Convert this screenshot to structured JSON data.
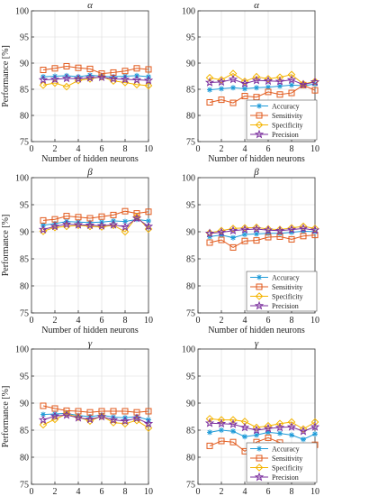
{
  "chart_data": [
    {
      "type": "line",
      "title": "α",
      "xlabel": "Number of hidden neurons",
      "ylabel": "Performance [%]",
      "xlim": [
        0,
        10
      ],
      "ylim": [
        75,
        100
      ],
      "xticks": [
        0,
        2,
        4,
        6,
        8,
        10
      ],
      "yticks": [
        75,
        80,
        85,
        90,
        95,
        100
      ],
      "grid": true,
      "legend": null,
      "x": [
        1,
        2,
        3,
        4,
        5,
        6,
        7,
        8,
        9,
        10
      ],
      "series": [
        {
          "name": "Accuracy",
          "values": [
            87.4,
            87.5,
            87.6,
            87.4,
            87.7,
            87.5,
            87.4,
            87.5,
            87.6,
            87.4
          ]
        },
        {
          "name": "Sensitivity",
          "values": [
            88.7,
            89.0,
            89.4,
            89.1,
            88.9,
            88.0,
            88.2,
            88.5,
            89.0,
            88.8
          ]
        },
        {
          "name": "Specificity",
          "values": [
            85.8,
            86.2,
            85.5,
            86.7,
            87.0,
            87.4,
            86.6,
            86.3,
            85.9,
            85.7
          ]
        },
        {
          "name": "Precision",
          "values": [
            86.8,
            86.9,
            87.1,
            87.0,
            87.2,
            87.3,
            87.0,
            86.9,
            86.8,
            86.7
          ]
        }
      ]
    },
    {
      "type": "line",
      "title": "α",
      "xlabel": "Number of hidden neurons",
      "ylabel": "",
      "xlim": [
        0,
        10
      ],
      "ylim": [
        75,
        100
      ],
      "xticks": [
        0,
        2,
        4,
        6,
        8,
        10
      ],
      "yticks": [
        75,
        80,
        85,
        90,
        95,
        100
      ],
      "grid": true,
      "legend": "bottom-right",
      "x": [
        1,
        2,
        3,
        4,
        5,
        6,
        7,
        8,
        9,
        10
      ],
      "series": [
        {
          "name": "Accuracy",
          "values": [
            84.9,
            85.1,
            85.3,
            85.1,
            85.3,
            85.4,
            85.6,
            85.8,
            85.7,
            86.0
          ]
        },
        {
          "name": "Sensitivity",
          "values": [
            82.5,
            83.0,
            82.4,
            83.7,
            83.5,
            84.5,
            84.0,
            84.3,
            85.8,
            84.8
          ]
        },
        {
          "name": "Specificity",
          "values": [
            87.2,
            86.8,
            88.0,
            86.5,
            87.4,
            87.0,
            87.3,
            87.8,
            86.0,
            86.5
          ]
        },
        {
          "name": "Precision",
          "values": [
            86.3,
            86.4,
            86.9,
            86.1,
            86.7,
            86.6,
            86.5,
            86.8,
            85.9,
            86.4
          ]
        }
      ]
    },
    {
      "type": "line",
      "title": "β",
      "xlabel": "Number of hidden neurons",
      "ylabel": "Performance [%]",
      "xlim": [
        0,
        10
      ],
      "ylim": [
        75,
        100
      ],
      "xticks": [
        0,
        2,
        4,
        6,
        8,
        10
      ],
      "yticks": [
        75,
        80,
        85,
        90,
        95,
        100
      ],
      "grid": true,
      "legend": null,
      "x": [
        1,
        2,
        3,
        4,
        5,
        6,
        7,
        8,
        9,
        10
      ],
      "series": [
        {
          "name": "Accuracy",
          "values": [
            91.2,
            91.5,
            91.9,
            91.8,
            91.7,
            91.8,
            92.0,
            91.9,
            92.3,
            92.0
          ]
        },
        {
          "name": "Sensitivity",
          "values": [
            92.1,
            92.3,
            92.9,
            92.7,
            92.5,
            92.8,
            93.1,
            93.8,
            93.4,
            93.7
          ]
        },
        {
          "name": "Specificity",
          "values": [
            90.1,
            90.8,
            91.0,
            91.2,
            91.0,
            90.9,
            91.2,
            90.0,
            92.8,
            90.5
          ]
        },
        {
          "name": "Precision",
          "values": [
            90.4,
            91.0,
            91.4,
            91.3,
            91.2,
            91.1,
            91.3,
            90.9,
            92.5,
            91.0
          ]
        }
      ]
    },
    {
      "type": "line",
      "title": "β",
      "xlabel": "Number of hidden neurons",
      "ylabel": "",
      "xlim": [
        0,
        10
      ],
      "ylim": [
        75,
        100
      ],
      "xticks": [
        0,
        2,
        4,
        6,
        8,
        10
      ],
      "yticks": [
        75,
        80,
        85,
        90,
        95,
        100
      ],
      "grid": true,
      "legend": "bottom-right",
      "x": [
        1,
        2,
        3,
        4,
        5,
        6,
        7,
        8,
        9,
        10
      ],
      "series": [
        {
          "name": "Accuracy",
          "values": [
            89.1,
            89.4,
            88.9,
            89.5,
            89.6,
            89.7,
            89.7,
            89.9,
            90.1,
            90.0
          ]
        },
        {
          "name": "Sensitivity",
          "values": [
            88.0,
            88.5,
            87.1,
            88.3,
            88.4,
            89.0,
            89.1,
            88.6,
            89.2,
            89.4
          ]
        },
        {
          "name": "Specificity",
          "values": [
            89.8,
            90.2,
            90.6,
            90.7,
            90.8,
            90.5,
            90.4,
            90.7,
            91.0,
            90.6
          ]
        },
        {
          "name": "Precision",
          "values": [
            89.7,
            89.9,
            90.2,
            90.4,
            90.5,
            90.3,
            90.2,
            90.4,
            90.6,
            90.3
          ]
        }
      ]
    },
    {
      "type": "line",
      "title": "γ",
      "xlabel": "Number of hidden neurons",
      "ylabel": "Performance [%]",
      "xlim": [
        0,
        10
      ],
      "ylim": [
        75,
        100
      ],
      "xticks": [
        0,
        2,
        4,
        6,
        8,
        10
      ],
      "yticks": [
        75,
        80,
        85,
        90,
        95,
        100
      ],
      "grid": true,
      "legend": null,
      "x": [
        1,
        2,
        3,
        4,
        5,
        6,
        7,
        8,
        9,
        10
      ],
      "series": [
        {
          "name": "Accuracy",
          "values": [
            87.9,
            88.0,
            88.1,
            87.7,
            87.5,
            87.8,
            87.4,
            87.3,
            87.5,
            86.9
          ]
        },
        {
          "name": "Sensitivity",
          "values": [
            89.5,
            89.0,
            88.6,
            88.5,
            88.3,
            88.5,
            88.5,
            88.5,
            88.3,
            88.5
          ]
        },
        {
          "name": "Specificity",
          "values": [
            86.0,
            87.0,
            88.0,
            87.4,
            86.7,
            87.6,
            86.4,
            86.2,
            86.8,
            85.4
          ]
        },
        {
          "name": "Precision",
          "values": [
            86.9,
            87.6,
            87.8,
            87.3,
            87.0,
            87.5,
            86.9,
            86.7,
            87.2,
            86.2
          ]
        }
      ]
    },
    {
      "type": "line",
      "title": "γ",
      "xlabel": "Number of hidden neurons",
      "ylabel": "",
      "xlim": [
        0,
        10
      ],
      "ylim": [
        75,
        100
      ],
      "xticks": [
        0,
        2,
        4,
        6,
        8,
        10
      ],
      "yticks": [
        75,
        80,
        85,
        90,
        95,
        100
      ],
      "grid": true,
      "legend": "bottom-right",
      "x": [
        1,
        2,
        3,
        4,
        5,
        6,
        7,
        8,
        9,
        10
      ],
      "series": [
        {
          "name": "Accuracy",
          "values": [
            84.6,
            85.0,
            84.8,
            83.8,
            84.1,
            84.6,
            84.4,
            84.1,
            83.3,
            84.3
          ]
        },
        {
          "name": "Sensitivity",
          "values": [
            82.1,
            83.0,
            82.8,
            81.1,
            82.8,
            83.6,
            82.7,
            81.7,
            81.8,
            82.3
          ]
        },
        {
          "name": "Specificity",
          "values": [
            87.1,
            86.9,
            86.9,
            86.6,
            85.5,
            85.8,
            86.2,
            86.5,
            85.2,
            86.5
          ]
        },
        {
          "name": "Precision",
          "values": [
            86.3,
            86.2,
            86.1,
            85.5,
            85.0,
            85.3,
            85.5,
            85.6,
            84.8,
            85.6
          ]
        }
      ]
    }
  ],
  "series_colors": {
    "Accuracy": "#1f9bd8",
    "Sensitivity": "#e25a1c",
    "Specificity": "#f4b400",
    "Precision": "#7b2f9e"
  },
  "series_markers": {
    "Accuracy": "asterisk",
    "Sensitivity": "square",
    "Specificity": "diamond",
    "Precision": "star"
  }
}
